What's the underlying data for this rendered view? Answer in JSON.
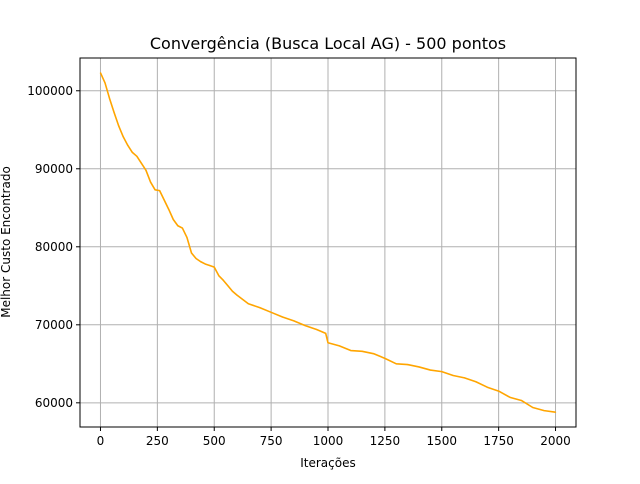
{
  "chart_data": {
    "type": "line",
    "title": "Convergência (Busca Local AG) - 500 pontos",
    "xlabel": "Iterações",
    "ylabel": "Melhor Custo Encontrado",
    "xlim": [
      -90,
      2090
    ],
    "ylim": [
      56900,
      104200
    ],
    "grid": true,
    "x_ticks": [
      0,
      250,
      500,
      750,
      1000,
      1250,
      1500,
      1750,
      2000
    ],
    "x_tick_labels": [
      "0",
      "250",
      "500",
      "750",
      "1000",
      "1250",
      "1500",
      "1750",
      "2000"
    ],
    "y_ticks": [
      60000,
      70000,
      80000,
      90000,
      100000
    ],
    "y_tick_labels": [
      "60000",
      "70000",
      "80000",
      "90000",
      "100000"
    ],
    "colors": {
      "series": "#ffa500",
      "grid": "#b0b0b0",
      "axes": "#000000"
    },
    "series": [
      {
        "name": "",
        "x": [
          0,
          20,
          40,
          60,
          80,
          100,
          120,
          140,
          160,
          180,
          200,
          220,
          240,
          260,
          280,
          300,
          320,
          340,
          360,
          380,
          400,
          420,
          440,
          460,
          480,
          500,
          520,
          540,
          560,
          580,
          600,
          650,
          700,
          750,
          800,
          850,
          900,
          950,
          990,
          1000,
          1050,
          1100,
          1150,
          1200,
          1250,
          1300,
          1350,
          1400,
          1450,
          1500,
          1550,
          1600,
          1650,
          1700,
          1750,
          1800,
          1850,
          1900,
          1950,
          2000
        ],
        "y": [
          102300,
          101000,
          99000,
          97200,
          95500,
          94100,
          93000,
          92100,
          91600,
          90700,
          89800,
          88300,
          87300,
          87200,
          86000,
          84800,
          83500,
          82700,
          82400,
          81200,
          79200,
          78500,
          78100,
          77800,
          77600,
          77400,
          76300,
          75700,
          75000,
          74300,
          73800,
          72700,
          72200,
          71600,
          71000,
          70500,
          69900,
          69400,
          68900,
          67700,
          67300,
          66700,
          66600,
          66300,
          65700,
          65000,
          64900,
          64600,
          64200,
          64000,
          63500,
          63200,
          62700,
          62000,
          61500,
          60700,
          60300,
          59400,
          59000,
          58800
        ]
      }
    ]
  }
}
